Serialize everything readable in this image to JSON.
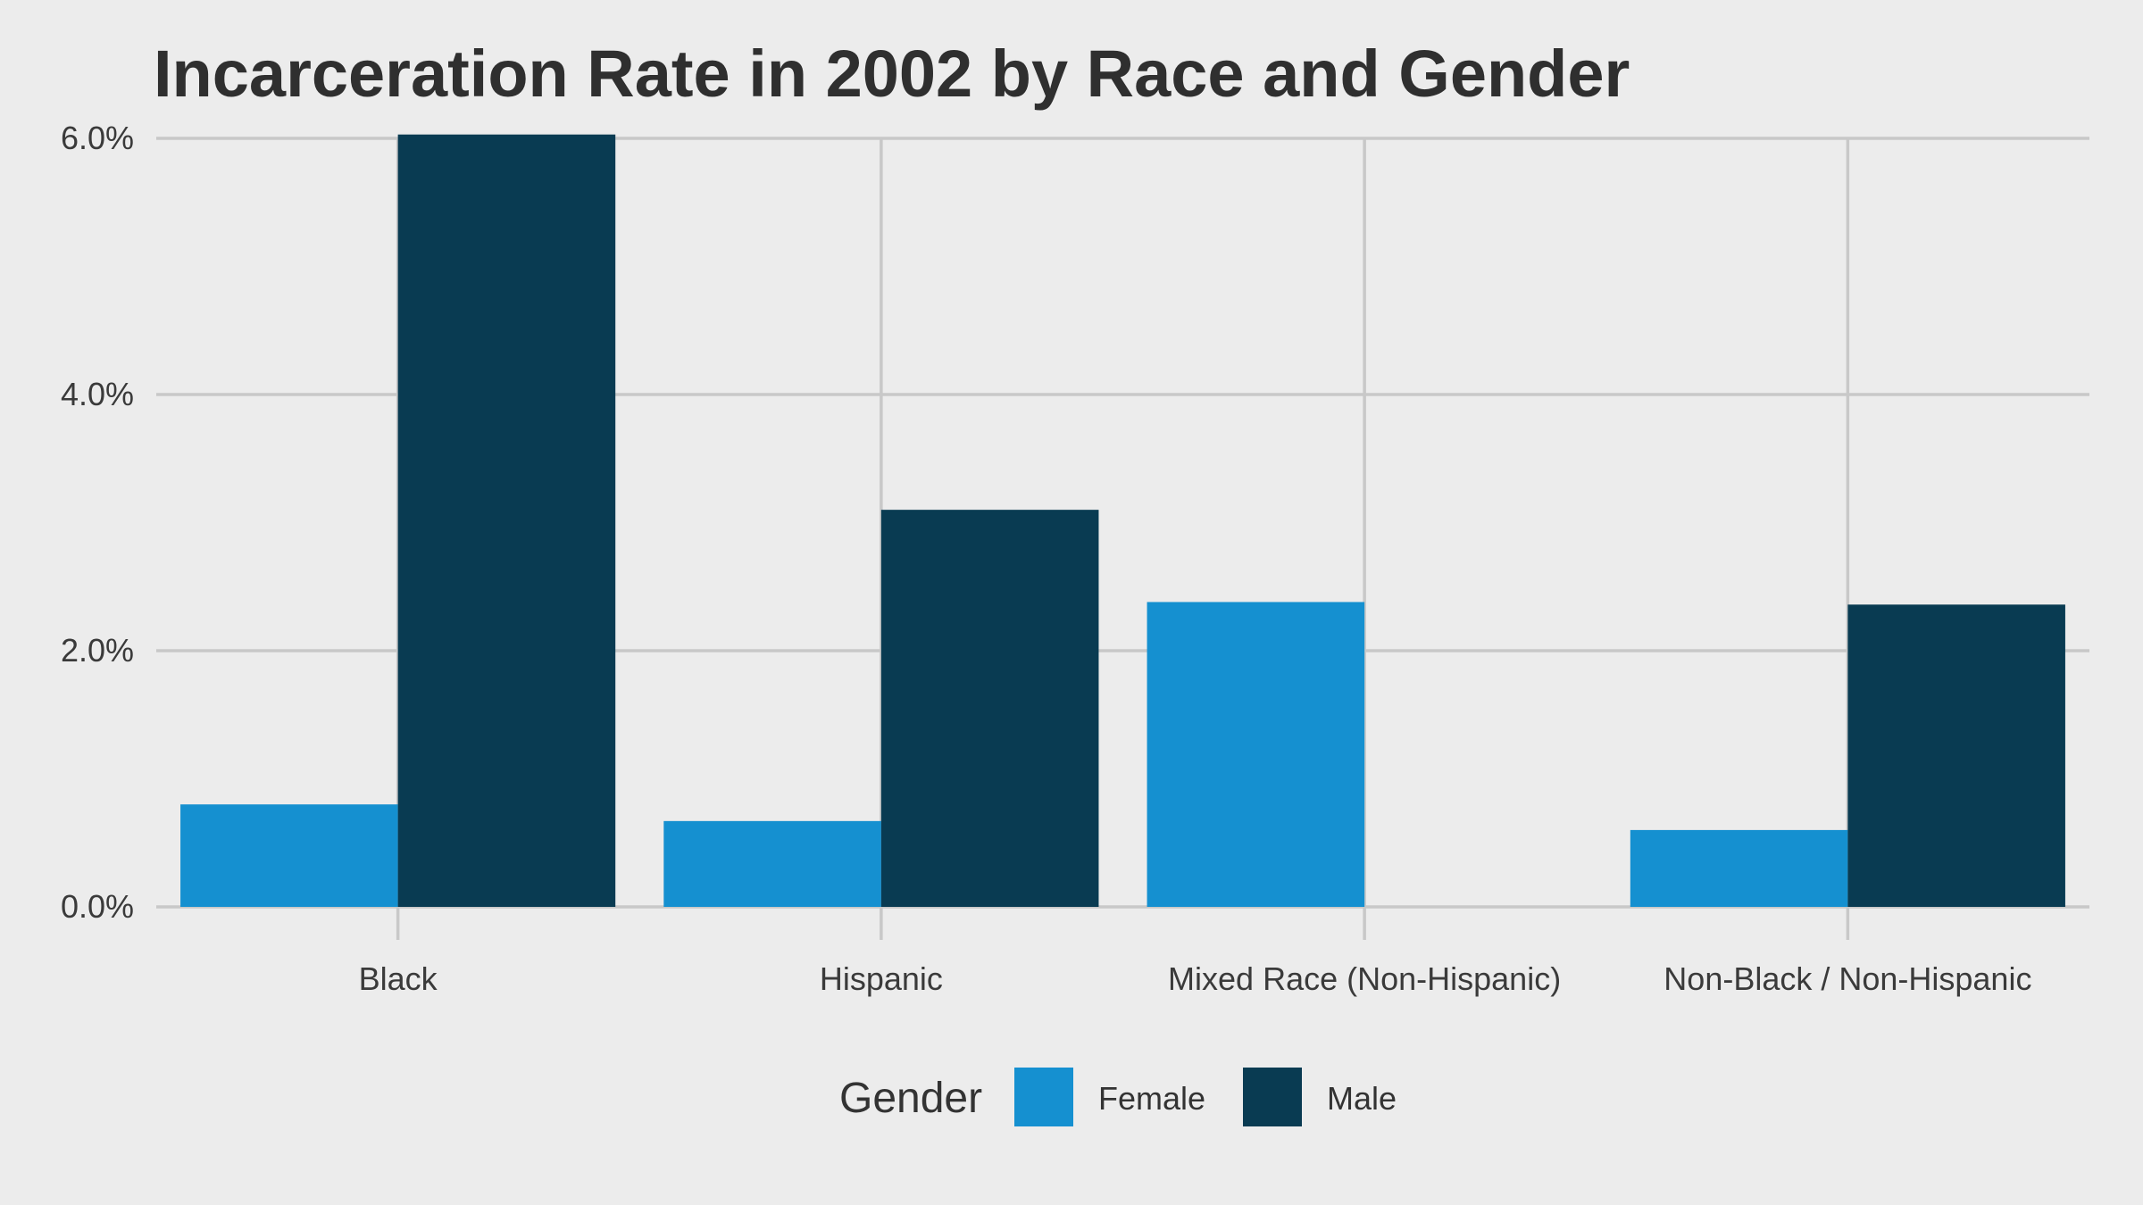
{
  "chart_data": {
    "type": "bar",
    "title": "Incarceration Rate in 2002 by Race and Gender",
    "xlabel": "",
    "ylabel": "",
    "categories": [
      "Black",
      "Hispanic",
      "Mixed Race (Non-Hispanic)",
      "Non-Black / Non-Hispanic"
    ],
    "series": [
      {
        "name": "Female",
        "color": "#1590d0",
        "values": [
          0.8,
          0.67,
          2.38,
          0.6
        ]
      },
      {
        "name": "Male",
        "color": "#093b52",
        "values": [
          6.03,
          3.1,
          null,
          2.36
        ]
      }
    ],
    "ylim": [
      0,
      6.35
    ],
    "yticks": [
      0,
      2,
      4,
      6
    ],
    "ytick_labels": [
      "0.0%",
      "2.0%",
      "4.0%",
      "6.0%"
    ],
    "grid": true,
    "legend": {
      "title": "Gender",
      "placement": "bottom",
      "entries": [
        "Female",
        "Male"
      ]
    }
  }
}
